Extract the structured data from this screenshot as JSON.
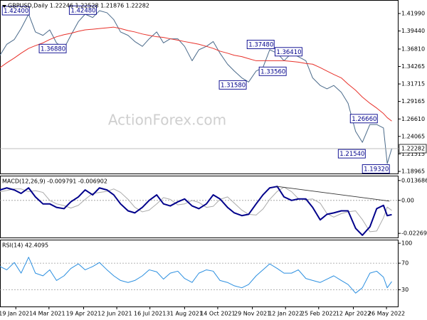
{
  "chart_data": [
    {
      "type": "line",
      "title": "GBPUSD,Daily 1.22246 1.22528 1.21876 1.22282",
      "watermark": "ActionForex.com",
      "xlim": [
        "2020-12-29",
        "2022-06-11"
      ],
      "ylim": [
        1.1855,
        1.4396
      ],
      "yticks": [
        {
          "value": 1.4199,
          "label": "1.41990"
        },
        {
          "value": 1.3944,
          "label": "1.39440"
        },
        {
          "value": 1.3681,
          "label": "1.36810"
        },
        {
          "value": 1.34265,
          "label": "1.34265"
        },
        {
          "value": 1.31715,
          "label": "1.31715"
        },
        {
          "value": 1.29165,
          "label": "1.29165"
        },
        {
          "value": 1.2661,
          "label": "1.26610"
        },
        {
          "value": 1.24065,
          "label": "1.24065"
        },
        {
          "value": 1.21515,
          "label": "1.21515"
        },
        {
          "value": 1.18965,
          "label": "1.18965"
        }
      ],
      "x": [
        "2020-12-29",
        "2021-01-07",
        "2021-01-17",
        "2021-01-26",
        "2021-02-05",
        "2021-02-14",
        "2021-02-24",
        "2021-03-05",
        "2021-03-14",
        "2021-03-24",
        "2021-04-02",
        "2021-04-12",
        "2021-04-21",
        "2021-05-01",
        "2021-05-10",
        "2021-05-20",
        "2021-05-29",
        "2021-06-07",
        "2021-06-17",
        "2021-06-26",
        "2021-07-06",
        "2021-07-15",
        "2021-07-25",
        "2021-08-03",
        "2021-08-12",
        "2021-08-22",
        "2021-08-31",
        "2021-09-10",
        "2021-09-19",
        "2021-09-29",
        "2021-10-08",
        "2021-10-17",
        "2021-10-27",
        "2021-11-05",
        "2021-11-15",
        "2021-11-24",
        "2021-12-04",
        "2021-12-13",
        "2021-12-22",
        "2022-01-01",
        "2022-01-10",
        "2022-01-20",
        "2022-01-29",
        "2022-02-08",
        "2022-02-17",
        "2022-02-27",
        "2022-03-08",
        "2022-03-17",
        "2022-03-27",
        "2022-04-05",
        "2022-04-15",
        "2022-04-24",
        "2022-05-04",
        "2022-05-13",
        "2022-05-22",
        "2022-05-27",
        "2022-06-02"
      ],
      "series": [
        {
          "color": "#4a6a8a",
          "values": [
            1.359,
            1.375,
            1.382,
            1.398,
            1.419,
            1.393,
            1.388,
            1.396,
            1.377,
            1.369,
            1.388,
            1.408,
            1.419,
            1.414,
            1.424,
            1.421,
            1.411,
            1.393,
            1.388,
            1.379,
            1.372,
            1.383,
            1.393,
            1.377,
            1.383,
            1.383,
            1.372,
            1.351,
            1.367,
            1.372,
            1.379,
            1.362,
            1.346,
            1.336,
            1.326,
            1.32,
            1.336,
            1.341,
            1.367,
            1.362,
            1.351,
            1.362,
            1.357,
            1.351,
            1.326,
            1.315,
            1.31,
            1.315,
            1.305,
            1.289,
            1.248,
            1.232,
            1.258,
            1.258,
            1.253,
            1.201,
            1.22282
          ]
        },
        {
          "color": "#e8312a",
          "values": [
            1.341,
            1.348,
            1.355,
            1.362,
            1.369,
            1.373,
            1.377,
            1.382,
            1.386,
            1.389,
            1.391,
            1.394,
            1.396,
            1.397,
            1.398,
            1.399,
            1.4,
            1.398,
            1.395,
            1.393,
            1.39,
            1.388,
            1.386,
            1.385,
            1.383,
            1.381,
            1.379,
            1.377,
            1.375,
            1.372,
            1.369,
            1.365,
            1.362,
            1.359,
            1.357,
            1.354,
            1.351,
            1.351,
            1.351,
            1.351,
            1.351,
            1.35,
            1.349,
            1.347,
            1.346,
            1.341,
            1.336,
            1.331,
            1.326,
            1.317,
            1.308,
            1.298,
            1.289,
            1.282,
            1.274,
            1.268,
            1.263
          ]
        }
      ],
      "last_price": {
        "value": 1.22282,
        "label": "1.22282"
      },
      "annotations": [
        {
          "x": "2021-01-01",
          "value": 1.424,
          "label": "1.42400"
        },
        {
          "x": "2021-03-31",
          "value": 1.4248,
          "label": "1.42480"
        },
        {
          "x": "2021-02-19",
          "value": 1.3688,
          "label": "1.36880"
        },
        {
          "x": "2021-11-22",
          "value": 1.3748,
          "label": "1.37480"
        },
        {
          "x": "2021-12-29",
          "value": 1.3641,
          "label": "1.36410"
        },
        {
          "x": "2021-12-08",
          "value": 1.3356,
          "label": "1.33560"
        },
        {
          "x": "2021-10-16",
          "value": 1.3158,
          "label": "1.31580"
        },
        {
          "x": "2022-04-08",
          "value": 1.2666,
          "label": "1.26660"
        },
        {
          "x": "2022-03-23",
          "value": 1.2154,
          "label": "1.21540"
        },
        {
          "x": "2022-04-24",
          "value": 1.1932,
          "label": "1.19320"
        }
      ]
    },
    {
      "type": "line",
      "title": "MACD(12,26,9) -0.009791 -0.006902",
      "xlim": [
        "2020-12-29",
        "2022-06-11"
      ],
      "ylim": [
        -0.02605,
        0.01704
      ],
      "yticks": [
        0.013686,
        {
          "value": 0,
          "label": "0.00"
        },
        -0.022698
      ],
      "levels": [
        0
      ],
      "x": [
        "2020-12-29",
        "2021-01-07",
        "2021-01-17",
        "2021-01-26",
        "2021-02-05",
        "2021-02-14",
        "2021-02-24",
        "2021-03-05",
        "2021-03-14",
        "2021-03-24",
        "2021-04-02",
        "2021-04-12",
        "2021-04-21",
        "2021-05-01",
        "2021-05-10",
        "2021-05-20",
        "2021-05-29",
        "2021-06-07",
        "2021-06-17",
        "2021-06-26",
        "2021-07-06",
        "2021-07-15",
        "2021-07-25",
        "2021-08-03",
        "2021-08-12",
        "2021-08-22",
        "2021-08-31",
        "2021-09-10",
        "2021-09-19",
        "2021-09-29",
        "2021-10-08",
        "2021-10-17",
        "2021-10-27",
        "2021-11-05",
        "2021-11-15",
        "2021-11-24",
        "2021-12-04",
        "2021-12-13",
        "2021-12-22",
        "2022-01-01",
        "2022-01-10",
        "2022-01-20",
        "2022-01-29",
        "2022-02-08",
        "2022-02-17",
        "2022-02-27",
        "2022-03-08",
        "2022-03-17",
        "2022-03-27",
        "2022-04-05",
        "2022-04-15",
        "2022-04-24",
        "2022-05-04",
        "2022-05-13",
        "2022-05-22",
        "2022-05-27",
        "2022-06-02"
      ],
      "series": [
        {
          "color": "#aaaaaa",
          "values": [
            0.006,
            0.0068,
            0.0079,
            0.0079,
            0.006,
            0.0067,
            0.0055,
            0,
            -0.0024,
            -0.0036,
            -0.0053,
            -0.0034,
            0.0007,
            0.0048,
            0.0055,
            0.0062,
            0.0079,
            0.0055,
            0.0007,
            -0.0048,
            -0.0079,
            -0.0067,
            -0.0024,
            0.0019,
            0.0007,
            -0.0031,
            -0.0024,
            0,
            -0.0014,
            -0.0048,
            -0.0041,
            0.0007,
            0.0024,
            -0.0019,
            -0.0067,
            -0.0096,
            -0.0101,
            -0.006,
            0.0007,
            0.0062,
            0.0091,
            0.006,
            0.0012,
            0.0005,
            0.001,
            -0.0019,
            -0.0091,
            -0.0115,
            -0.0091,
            -0.0079,
            -0.0072,
            -0.0132,
            -0.0216,
            -0.0211,
            -0.012,
            -0.0046,
            -0.006902
          ]
        },
        {
          "color": "#00008b",
          "values": [
            0.0072,
            0.0086,
            0.0072,
            0.0048,
            0.0086,
            0.0024,
            -0.0024,
            -0.0024,
            -0.0048,
            -0.0057,
            -0.001,
            0.0024,
            0.0072,
            0.0038,
            0.0086,
            0.0072,
            0.0038,
            -0.0024,
            -0.0072,
            -0.0086,
            -0.0048,
            0,
            0.0038,
            -0.0024,
            -0.0038,
            -0.001,
            0.001,
            -0.0038,
            -0.0057,
            -0.0024,
            0.0038,
            0.001,
            -0.0048,
            -0.0086,
            -0.0105,
            -0.0096,
            -0.0024,
            0.0038,
            0.0086,
            0.0096,
            0.0024,
            0,
            0.001,
            0.001,
            -0.0048,
            -0.0134,
            -0.0096,
            -0.0086,
            -0.0072,
            -0.0072,
            -0.0192,
            -0.024,
            -0.0182,
            -0.0057,
            -0.0034,
            -0.0105,
            -0.009791
          ]
        }
      ],
      "trendline": {
        "x": [
          "2022-01-01",
          "2022-05-30"
        ],
        "values": [
          0.0096,
          -0.0005
        ]
      }
    },
    {
      "type": "line",
      "title": "RSI(14) 42.4095",
      "xlim": [
        "2020-12-29",
        "2022-06-11"
      ],
      "ylim": [
        3.8,
        105.4
      ],
      "yticks": [
        100,
        70,
        30
      ],
      "levels": [
        70,
        30
      ],
      "xticks": [
        {
          "value": "2021-01-19",
          "label": "19 Jan 2021"
        },
        {
          "value": "2021-03-04",
          "label": "4 Mar 2021"
        },
        {
          "value": "2021-04-19",
          "label": "19 Apr 2021"
        },
        {
          "value": "2021-06-02",
          "label": "2 Jun 2021"
        },
        {
          "value": "2021-07-16",
          "label": "16 Jul 2021"
        },
        {
          "value": "2021-08-31",
          "label": "31 Aug 2021"
        },
        {
          "value": "2021-10-14",
          "label": "14 Oct 2021"
        },
        {
          "value": "2021-11-29",
          "label": "29 Nov 2021"
        },
        {
          "value": "2022-01-12",
          "label": "12 Jan 2022"
        },
        {
          "value": "2022-02-25",
          "label": "25 Feb 2022"
        },
        {
          "value": "2022-04-12",
          "label": "12 Apr 2022"
        },
        {
          "value": "2022-05-26",
          "label": "26 May 2022"
        }
      ],
      "x": [
        "2020-12-29",
        "2021-01-07",
        "2021-01-17",
        "2021-01-26",
        "2021-02-05",
        "2021-02-14",
        "2021-02-24",
        "2021-03-05",
        "2021-03-14",
        "2021-03-24",
        "2021-04-02",
        "2021-04-12",
        "2021-04-21",
        "2021-05-01",
        "2021-05-10",
        "2021-05-20",
        "2021-05-29",
        "2021-06-07",
        "2021-06-17",
        "2021-06-26",
        "2021-07-06",
        "2021-07-15",
        "2021-07-25",
        "2021-08-03",
        "2021-08-12",
        "2021-08-22",
        "2021-08-31",
        "2021-09-10",
        "2021-09-19",
        "2021-09-29",
        "2021-10-08",
        "2021-10-17",
        "2021-10-27",
        "2021-11-05",
        "2021-11-15",
        "2021-11-24",
        "2021-12-04",
        "2021-12-13",
        "2021-12-22",
        "2022-01-01",
        "2022-01-10",
        "2022-01-20",
        "2022-01-29",
        "2022-02-08",
        "2022-02-17",
        "2022-02-27",
        "2022-03-08",
        "2022-03-17",
        "2022-03-27",
        "2022-04-05",
        "2022-04-15",
        "2022-04-24",
        "2022-05-04",
        "2022-05-13",
        "2022-05-22",
        "2022-05-27",
        "2022-06-02"
      ],
      "series": [
        {
          "color": "#2b8fe0",
          "values": [
            65,
            60,
            71,
            55,
            79,
            55,
            51,
            60,
            44,
            51,
            62,
            69,
            60,
            65,
            71,
            60,
            51,
            44,
            41,
            44,
            51,
            60,
            57,
            46,
            55,
            58,
            47,
            41,
            55,
            60,
            58,
            44,
            41,
            36,
            33,
            38,
            51,
            60,
            69,
            62,
            55,
            55,
            60,
            47,
            44,
            41,
            46,
            51,
            44,
            38,
            25,
            33,
            55,
            58,
            49,
            33,
            42.4095
          ]
        }
      ]
    }
  ]
}
